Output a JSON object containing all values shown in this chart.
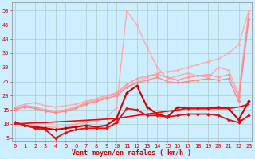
{
  "x": [
    0,
    1,
    2,
    3,
    4,
    5,
    6,
    7,
    8,
    9,
    10,
    11,
    12,
    13,
    14,
    15,
    16,
    17,
    18,
    19,
    20,
    21,
    22,
    23
  ],
  "background_color": "#cceeff",
  "grid_color": "#aacccc",
  "xlabel": "Vent moyen/en rafales ( km/h )",
  "xlabel_color": "#cc0000",
  "lines": [
    {
      "values": [
        16.0,
        17.0,
        17.5,
        16.5,
        16.0,
        16.5,
        17.0,
        18.0,
        19.0,
        20.0,
        21.0,
        23.0,
        25.0,
        26.5,
        28.0,
        28.5,
        29.0,
        30.0,
        31.0,
        32.0,
        33.0,
        35.0,
        38.0,
        50.0
      ],
      "color": "#ffaaaa",
      "lw": 1.0,
      "marker": "D",
      "ms": 1.8
    },
    {
      "values": [
        10.5,
        10.0,
        9.5,
        9.0,
        9.0,
        9.5,
        10.0,
        10.5,
        11.0,
        12.0,
        16.0,
        50.0,
        45.0,
        37.0,
        30.0,
        26.0,
        27.0,
        28.0,
        27.0,
        26.5,
        30.0,
        29.0,
        20.5,
        50.0
      ],
      "color": "#ffaaaa",
      "lw": 1.0,
      "marker": "D",
      "ms": 1.8
    },
    {
      "values": [
        15.5,
        16.5,
        16.0,
        15.0,
        14.5,
        15.0,
        16.0,
        17.5,
        18.5,
        19.5,
        21.0,
        24.0,
        26.0,
        27.0,
        27.5,
        26.5,
        25.5,
        26.5,
        27.0,
        27.5,
        26.5,
        27.5,
        19.5,
        49.0
      ],
      "color": "#ff9999",
      "lw": 1.0,
      "marker": "D",
      "ms": 1.8
    },
    {
      "values": [
        15.0,
        16.0,
        15.5,
        14.5,
        14.0,
        14.5,
        15.5,
        17.0,
        18.0,
        19.0,
        20.0,
        23.0,
        24.5,
        25.5,
        26.5,
        25.0,
        24.5,
        25.0,
        25.5,
        26.0,
        25.5,
        26.0,
        18.0,
        47.0
      ],
      "color": "#ff8888",
      "lw": 1.0,
      "marker": "D",
      "ms": 1.8
    },
    {
      "values": [
        10.5,
        9.5,
        9.0,
        8.5,
        8.0,
        8.5,
        9.0,
        9.5,
        9.0,
        9.5,
        12.0,
        21.0,
        23.5,
        16.0,
        13.5,
        12.5,
        16.0,
        15.5,
        15.5,
        15.5,
        16.0,
        15.5,
        11.5,
        18.0
      ],
      "color": "#cc0000",
      "lw": 1.5,
      "marker": "D",
      "ms": 2.0
    },
    {
      "values": [
        10.5,
        9.5,
        8.5,
        8.0,
        5.0,
        7.0,
        8.0,
        8.5,
        8.5,
        8.5,
        10.5,
        15.5,
        15.0,
        13.0,
        13.0,
        12.5,
        13.0,
        13.5,
        13.5,
        13.5,
        13.0,
        11.5,
        10.5,
        13.0
      ],
      "color": "#dd1111",
      "lw": 1.3,
      "marker": "D",
      "ms": 2.0
    },
    {
      "values": [
        10.0,
        10.2,
        10.4,
        10.5,
        10.7,
        10.9,
        11.1,
        11.3,
        11.5,
        11.7,
        12.0,
        12.5,
        13.0,
        13.5,
        14.0,
        14.5,
        15.0,
        15.5,
        15.5,
        15.5,
        15.5,
        15.5,
        16.0,
        17.0
      ],
      "color": "#ff0000",
      "lw": 1.2,
      "marker": null,
      "ms": 0
    }
  ],
  "wind_arrows": [
    "k",
    "k",
    "t",
    "t",
    "k",
    "t",
    "t",
    "t",
    "t",
    "t",
    "p",
    "r",
    "r",
    "r",
    "r",
    "k",
    "k",
    "k",
    "k",
    "k",
    "t",
    "k",
    "t",
    "s"
  ],
  "yticks": [
    5,
    10,
    15,
    20,
    25,
    30,
    35,
    40,
    45,
    50
  ],
  "ylim": [
    4,
    53
  ],
  "xlim": [
    -0.3,
    23.3
  ],
  "tick_color": "#cc0000",
  "tick_fontsize": 5.0,
  "xlabel_fontsize": 6.0
}
